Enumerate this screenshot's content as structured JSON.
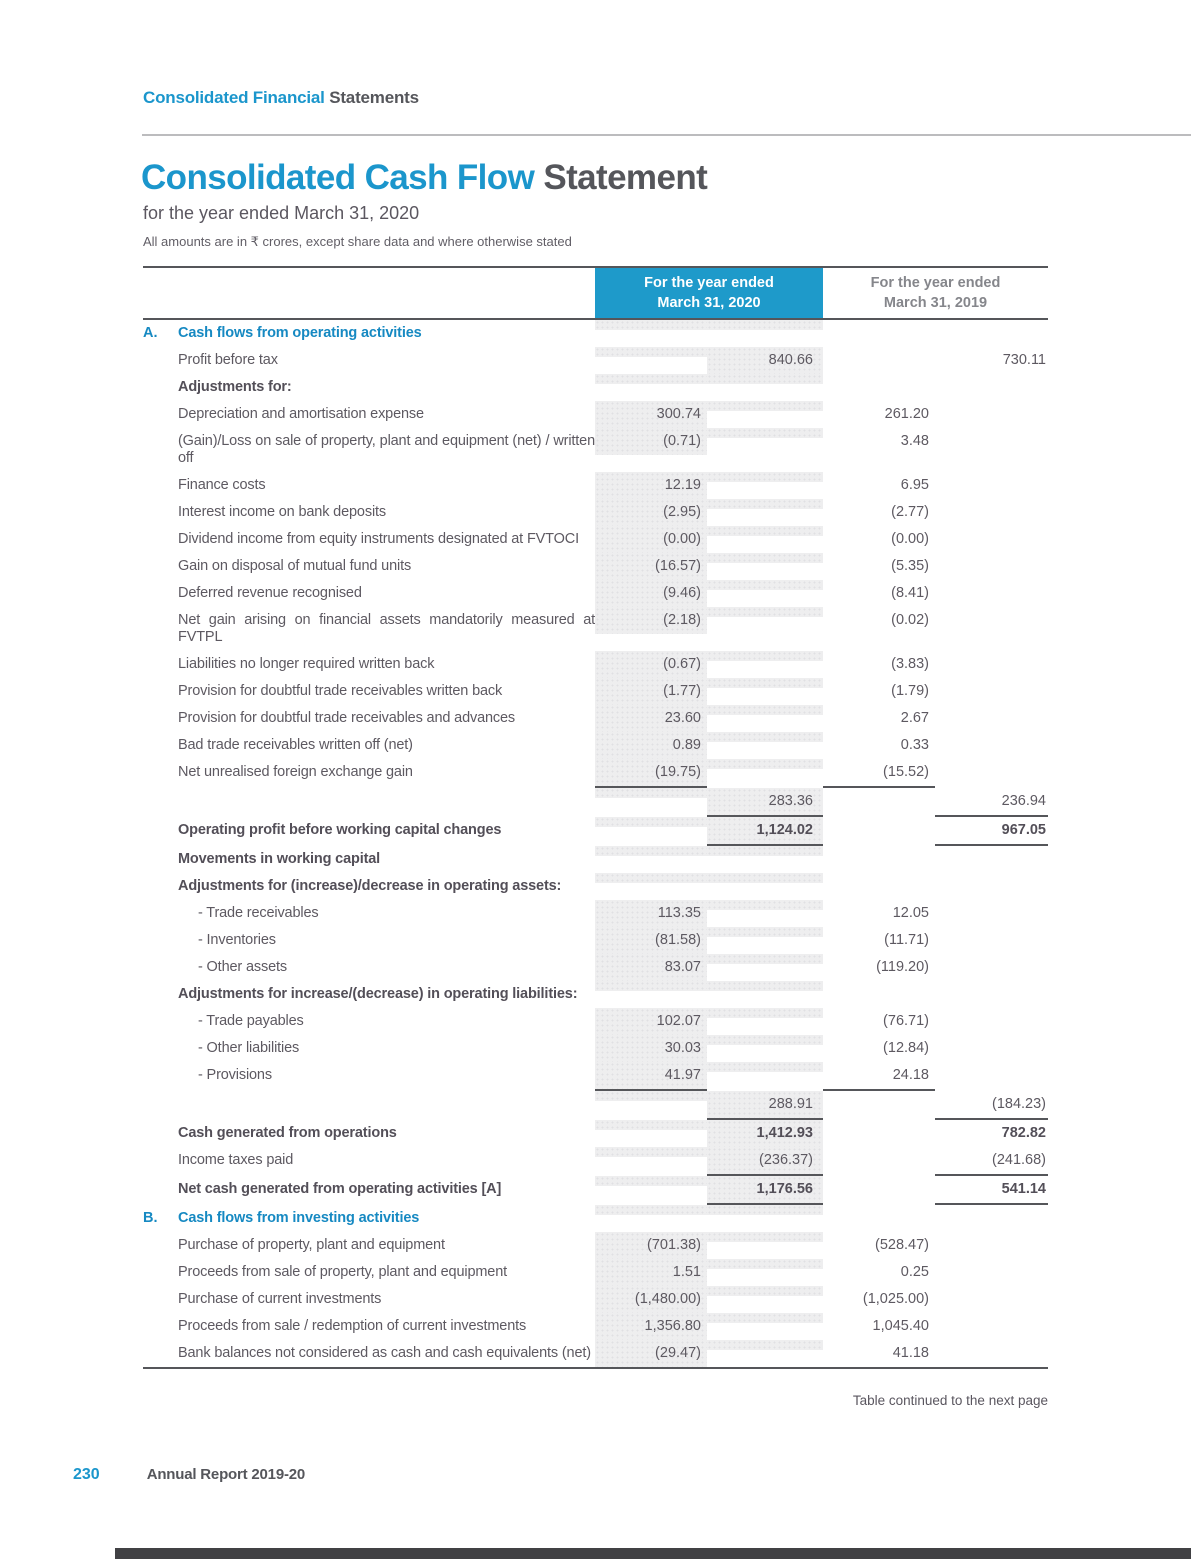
{
  "colors": {
    "accent_blue": "#1b96cc",
    "section_blue": "#1689c2",
    "header_box_blue": "#1e9aca",
    "rule_dark": "#55565a",
    "gray_column_bg": "#eeeeef",
    "muted_header_gray": "#85868b",
    "bottom_bar": "#414144"
  },
  "topbar": {
    "part_blue": "Consolidated Financial",
    "part_gray": " Statements"
  },
  "title": {
    "part_blue": "Consolidated Cash Flow",
    "part_gray": " Statement"
  },
  "subtitle": "for the year ended March 31, 2020",
  "note": "All amounts are in ₹ crores, except share data and where otherwise stated",
  "table": {
    "col_2020": {
      "line1": "For the year ended",
      "line2": "March 31, 2020"
    },
    "col_2019": {
      "line1": "For the year ended",
      "line2": "March 31, 2019"
    },
    "rows": [
      {
        "letter": "A.",
        "label": "Cash flows from operating activities",
        "style": "section",
        "v1": "",
        "v2": "",
        "v3": "",
        "v4": "",
        "u1": false,
        "u2": false,
        "bold_values": false
      },
      {
        "letter": "",
        "label": "Profit before tax",
        "style": "normal",
        "v1": "",
        "v2": "840.66",
        "v3": "",
        "v4": "730.11",
        "u1": false,
        "u2": false,
        "bold_values": false
      },
      {
        "letter": "",
        "label": "Adjustments for:",
        "style": "bold",
        "v1": "",
        "v2": "",
        "v3": "",
        "v4": "",
        "u1": false,
        "u2": false,
        "bold_values": false
      },
      {
        "letter": "",
        "label": "Depreciation and amortisation expense",
        "style": "normal",
        "v1": "300.74",
        "v2": "",
        "v3": "261.20",
        "v4": "",
        "u1": false,
        "u2": false,
        "bold_values": false
      },
      {
        "letter": "",
        "label": "(Gain)/Loss on sale of property, plant and equipment (net) / written off",
        "style": "normal",
        "v1": "(0.71)",
        "v2": "",
        "v3": "3.48",
        "v4": "",
        "u1": false,
        "u2": false,
        "bold_values": false
      },
      {
        "letter": "",
        "label": "Finance costs",
        "style": "normal",
        "v1": "12.19",
        "v2": "",
        "v3": "6.95",
        "v4": "",
        "u1": false,
        "u2": false,
        "bold_values": false
      },
      {
        "letter": "",
        "label": "Interest income on bank deposits",
        "style": "normal",
        "v1": "(2.95)",
        "v2": "",
        "v3": "(2.77)",
        "v4": "",
        "u1": false,
        "u2": false,
        "bold_values": false
      },
      {
        "letter": "",
        "label": "Dividend income from equity instruments designated at FVTOCI",
        "style": "normal",
        "v1": "(0.00)",
        "v2": "",
        "v3": "(0.00)",
        "v4": "",
        "u1": false,
        "u2": false,
        "bold_values": false
      },
      {
        "letter": "",
        "label": "Gain on disposal of mutual fund units",
        "style": "normal",
        "v1": "(16.57)",
        "v2": "",
        "v3": "(5.35)",
        "v4": "",
        "u1": false,
        "u2": false,
        "bold_values": false
      },
      {
        "letter": "",
        "label": "Deferred revenue recognised",
        "style": "normal",
        "v1": "(9.46)",
        "v2": "",
        "v3": "(8.41)",
        "v4": "",
        "u1": false,
        "u2": false,
        "bold_values": false
      },
      {
        "letter": "",
        "label": "Net gain arising on financial assets mandatorily measured at FVTPL",
        "style": "normal",
        "v1": "(2.18)",
        "v2": "",
        "v3": "(0.02)",
        "v4": "",
        "u1": false,
        "u2": false,
        "bold_values": false
      },
      {
        "letter": "",
        "label": "Liabilities no longer required written back",
        "style": "normal",
        "v1": "(0.67)",
        "v2": "",
        "v3": "(3.83)",
        "v4": "",
        "u1": false,
        "u2": false,
        "bold_values": false
      },
      {
        "letter": "",
        "label": "Provision for doubtful trade receivables written back",
        "style": "normal",
        "v1": "(1.77)",
        "v2": "",
        "v3": "(1.79)",
        "v4": "",
        "u1": false,
        "u2": false,
        "bold_values": false
      },
      {
        "letter": "",
        "label": "Provision for doubtful trade receivables and advances",
        "style": "normal",
        "v1": "23.60",
        "v2": "",
        "v3": "2.67",
        "v4": "",
        "u1": false,
        "u2": false,
        "bold_values": false
      },
      {
        "letter": "",
        "label": "Bad trade receivables written off (net)",
        "style": "normal",
        "v1": "0.89",
        "v2": "",
        "v3": "0.33",
        "v4": "",
        "u1": false,
        "u2": false,
        "bold_values": false
      },
      {
        "letter": "",
        "label": "Net unrealised foreign exchange gain",
        "style": "normal",
        "v1": "(19.75)",
        "v2": "",
        "v3": "(15.52)",
        "v4": "",
        "u1": true,
        "u2": false,
        "bold_values": false
      },
      {
        "letter": "",
        "label": "",
        "style": "normal",
        "v1": "",
        "v2": "283.36",
        "v3": "",
        "v4": "236.94",
        "u1": false,
        "u2": true,
        "bold_values": false
      },
      {
        "letter": "",
        "label": "Operating profit before working capital changes",
        "style": "bold",
        "v1": "",
        "v2": "1,124.02",
        "v3": "",
        "v4": "967.05",
        "u1": false,
        "u2": true,
        "bold_values": true
      },
      {
        "letter": "",
        "label": "Movements in working capital",
        "style": "bold",
        "v1": "",
        "v2": "",
        "v3": "",
        "v4": "",
        "u1": false,
        "u2": false,
        "bold_values": false
      },
      {
        "letter": "",
        "label": "Adjustments for (increase)/decrease in operating assets:",
        "style": "bold",
        "v1": "",
        "v2": "",
        "v3": "",
        "v4": "",
        "u1": false,
        "u2": false,
        "bold_values": false
      },
      {
        "letter": "",
        "label": "- Trade receivables",
        "style": "indent",
        "v1": "113.35",
        "v2": "",
        "v3": "12.05",
        "v4": "",
        "u1": false,
        "u2": false,
        "bold_values": false
      },
      {
        "letter": "",
        "label": "- Inventories",
        "style": "indent",
        "v1": "(81.58)",
        "v2": "",
        "v3": "(11.71)",
        "v4": "",
        "u1": false,
        "u2": false,
        "bold_values": false
      },
      {
        "letter": "",
        "label": "- Other assets",
        "style": "indent",
        "v1": "83.07",
        "v2": "",
        "v3": "(119.20)",
        "v4": "",
        "u1": false,
        "u2": false,
        "bold_values": false
      },
      {
        "letter": "",
        "label": "Adjustments for increase/(decrease) in operating liabilities:",
        "style": "bold",
        "v1": "",
        "v2": "",
        "v3": "",
        "v4": "",
        "u1": false,
        "u2": false,
        "bold_values": false
      },
      {
        "letter": "",
        "label": "- Trade payables",
        "style": "indent",
        "v1": "102.07",
        "v2": "",
        "v3": "(76.71)",
        "v4": "",
        "u1": false,
        "u2": false,
        "bold_values": false
      },
      {
        "letter": "",
        "label": "- Other liabilities",
        "style": "indent",
        "v1": "30.03",
        "v2": "",
        "v3": "(12.84)",
        "v4": "",
        "u1": false,
        "u2": false,
        "bold_values": false
      },
      {
        "letter": "",
        "label": "- Provisions",
        "style": "indent",
        "v1": "41.97",
        "v2": "",
        "v3": "24.18",
        "v4": "",
        "u1": true,
        "u2": false,
        "bold_values": false
      },
      {
        "letter": "",
        "label": "",
        "style": "normal",
        "v1": "",
        "v2": "288.91",
        "v3": "",
        "v4": "(184.23)",
        "u1": false,
        "u2": true,
        "bold_values": false
      },
      {
        "letter": "",
        "label": "Cash generated from operations",
        "style": "bold",
        "v1": "",
        "v2": "1,412.93",
        "v3": "",
        "v4": "782.82",
        "u1": false,
        "u2": false,
        "bold_values": true
      },
      {
        "letter": "",
        "label": "Income taxes paid",
        "style": "normal",
        "v1": "",
        "v2": "(236.37)",
        "v3": "",
        "v4": "(241.68)",
        "u1": false,
        "u2": true,
        "bold_values": false
      },
      {
        "letter": "",
        "label": "Net cash generated from operating activities [A]",
        "style": "bold",
        "v1": "",
        "v2": "1,176.56",
        "v3": "",
        "v4": "541.14",
        "u1": false,
        "u2": true,
        "bold_values": true
      },
      {
        "letter": "B.",
        "label": "Cash flows from investing activities",
        "style": "section",
        "v1": "",
        "v2": "",
        "v3": "",
        "v4": "",
        "u1": false,
        "u2": false,
        "bold_values": false
      },
      {
        "letter": "",
        "label": "Purchase of property, plant and equipment",
        "style": "normal",
        "v1": "(701.38)",
        "v2": "",
        "v3": "(528.47)",
        "v4": "",
        "u1": false,
        "u2": false,
        "bold_values": false
      },
      {
        "letter": "",
        "label": "Proceeds from sale of property, plant and equipment",
        "style": "normal",
        "v1": "1.51",
        "v2": "",
        "v3": "0.25",
        "v4": "",
        "u1": false,
        "u2": false,
        "bold_values": false
      },
      {
        "letter": "",
        "label": "Purchase of current investments",
        "style": "normal",
        "v1": "(1,480.00)",
        "v2": "",
        "v3": "(1,025.00)",
        "v4": "",
        "u1": false,
        "u2": false,
        "bold_values": false
      },
      {
        "letter": "",
        "label": "Proceeds from sale / redemption of current investments",
        "style": "normal",
        "v1": "1,356.80",
        "v2": "",
        "v3": "1,045.40",
        "v4": "",
        "u1": false,
        "u2": false,
        "bold_values": false
      },
      {
        "letter": "",
        "label": "Bank balances not considered as cash and cash equivalents (net)",
        "style": "normal",
        "v1": "(29.47)",
        "v2": "",
        "v3": "41.18",
        "v4": "",
        "u1": false,
        "u2": false,
        "bold_values": false
      }
    ],
    "continued_note": "Table continued to the next page"
  },
  "footer": {
    "page_number": "230",
    "report_title": "Annual Report 2019-20"
  }
}
